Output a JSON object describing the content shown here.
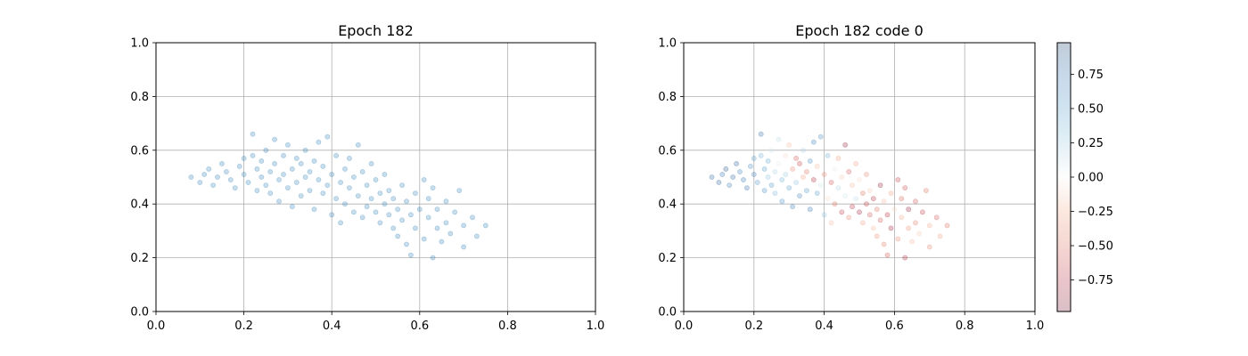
{
  "chart_data": [
    {
      "type": "scatter",
      "title": "Epoch 182",
      "xlabel": "",
      "ylabel": "",
      "xlim": [
        0.0,
        1.0
      ],
      "ylim": [
        0.0,
        1.0
      ],
      "xticks": [
        "0.0",
        "0.2",
        "0.4",
        "0.6",
        "0.8",
        "1.0"
      ],
      "yticks": [
        "0.0",
        "0.2",
        "0.4",
        "0.6",
        "0.8",
        "1.0"
      ],
      "grid": true,
      "marker_color": "#1f77b4",
      "marker_alpha": 0.25,
      "points_approx": [
        [
          0.08,
          0.5
        ],
        [
          0.1,
          0.48
        ],
        [
          0.11,
          0.51
        ],
        [
          0.12,
          0.53
        ],
        [
          0.13,
          0.47
        ],
        [
          0.14,
          0.5
        ],
        [
          0.15,
          0.55
        ],
        [
          0.16,
          0.52
        ],
        [
          0.17,
          0.49
        ],
        [
          0.18,
          0.46
        ],
        [
          0.19,
          0.54
        ],
        [
          0.2,
          0.57
        ],
        [
          0.2,
          0.51
        ],
        [
          0.21,
          0.48
        ],
        [
          0.22,
          0.66
        ],
        [
          0.22,
          0.58
        ],
        [
          0.23,
          0.53
        ],
        [
          0.23,
          0.45
        ],
        [
          0.24,
          0.5
        ],
        [
          0.24,
          0.56
        ],
        [
          0.25,
          0.6
        ],
        [
          0.25,
          0.47
        ],
        [
          0.26,
          0.52
        ],
        [
          0.26,
          0.44
        ],
        [
          0.27,
          0.64
        ],
        [
          0.27,
          0.55
        ],
        [
          0.28,
          0.49
        ],
        [
          0.28,
          0.41
        ],
        [
          0.29,
          0.58
        ],
        [
          0.29,
          0.51
        ],
        [
          0.3,
          0.46
        ],
        [
          0.3,
          0.62
        ],
        [
          0.31,
          0.53
        ],
        [
          0.31,
          0.39
        ],
        [
          0.32,
          0.57
        ],
        [
          0.32,
          0.48
        ],
        [
          0.33,
          0.43
        ],
        [
          0.33,
          0.55
        ],
        [
          0.34,
          0.5
        ],
        [
          0.34,
          0.6
        ],
        [
          0.35,
          0.45
        ],
        [
          0.35,
          0.52
        ],
        [
          0.36,
          0.38
        ],
        [
          0.36,
          0.56
        ],
        [
          0.37,
          0.49
        ],
        [
          0.37,
          0.63
        ],
        [
          0.38,
          0.44
        ],
        [
          0.38,
          0.54
        ],
        [
          0.39,
          0.47
        ],
        [
          0.39,
          0.65
        ],
        [
          0.4,
          0.51
        ],
        [
          0.4,
          0.36
        ],
        [
          0.41,
          0.42
        ],
        [
          0.41,
          0.58
        ],
        [
          0.42,
          0.48
        ],
        [
          0.42,
          0.33
        ],
        [
          0.43,
          0.53
        ],
        [
          0.43,
          0.4
        ],
        [
          0.44,
          0.46
        ],
        [
          0.44,
          0.57
        ],
        [
          0.45,
          0.37
        ],
        [
          0.45,
          0.5
        ],
        [
          0.46,
          0.62
        ],
        [
          0.46,
          0.43
        ],
        [
          0.47,
          0.35
        ],
        [
          0.47,
          0.52
        ],
        [
          0.48,
          0.47
        ],
        [
          0.48,
          0.39
        ],
        [
          0.49,
          0.55
        ],
        [
          0.49,
          0.42
        ],
        [
          0.5,
          0.37
        ],
        [
          0.5,
          0.49
        ],
        [
          0.51,
          0.44
        ],
        [
          0.51,
          0.33
        ],
        [
          0.52,
          0.4
        ],
        [
          0.52,
          0.51
        ],
        [
          0.53,
          0.36
        ],
        [
          0.53,
          0.45
        ],
        [
          0.54,
          0.31
        ],
        [
          0.54,
          0.42
        ],
        [
          0.55,
          0.38
        ],
        [
          0.55,
          0.28
        ],
        [
          0.56,
          0.47
        ],
        [
          0.56,
          0.34
        ],
        [
          0.57,
          0.41
        ],
        [
          0.57,
          0.25
        ],
        [
          0.58,
          0.36
        ],
        [
          0.58,
          0.21
        ],
        [
          0.59,
          0.44
        ],
        [
          0.59,
          0.31
        ],
        [
          0.6,
          0.38
        ],
        [
          0.61,
          0.49
        ],
        [
          0.61,
          0.27
        ],
        [
          0.62,
          0.42
        ],
        [
          0.62,
          0.35
        ],
        [
          0.63,
          0.2
        ],
        [
          0.63,
          0.46
        ],
        [
          0.64,
          0.31
        ],
        [
          0.64,
          0.38
        ],
        [
          0.65,
          0.26
        ],
        [
          0.66,
          0.41
        ],
        [
          0.66,
          0.33
        ],
        [
          0.67,
          0.29
        ],
        [
          0.68,
          0.37
        ],
        [
          0.69,
          0.45
        ],
        [
          0.7,
          0.32
        ],
        [
          0.7,
          0.24
        ],
        [
          0.72,
          0.35
        ],
        [
          0.73,
          0.28
        ],
        [
          0.75,
          0.32
        ]
      ]
    },
    {
      "type": "scatter",
      "title": "Epoch 182 code 0",
      "xlabel": "",
      "ylabel": "",
      "xlim": [
        0.0,
        1.0
      ],
      "ylim": [
        0.0,
        1.0
      ],
      "xticks": [
        "0.0",
        "0.2",
        "0.4",
        "0.6",
        "0.8",
        "1.0"
      ],
      "yticks": [
        "0.0",
        "0.2",
        "0.4",
        "0.6",
        "0.8",
        "1.0"
      ],
      "grid": true,
      "colormap": "RdBu",
      "marker_alpha": 0.25,
      "colorbar": {
        "range": [
          -0.98,
          0.98
        ],
        "ticks": [
          "0.75",
          "0.50",
          "0.25",
          "0.00",
          "−0.25",
          "−0.50",
          "−0.75"
        ],
        "tick_values": [
          0.75,
          0.5,
          0.25,
          0.0,
          -0.25,
          -0.5,
          -0.75
        ]
      },
      "points_approx": [
        [
          0.08,
          0.5,
          0.8
        ],
        [
          0.1,
          0.48,
          0.85
        ],
        [
          0.11,
          0.51,
          0.75
        ],
        [
          0.12,
          0.53,
          0.9
        ],
        [
          0.13,
          0.47,
          0.7
        ],
        [
          0.14,
          0.5,
          0.8
        ],
        [
          0.15,
          0.55,
          0.85
        ],
        [
          0.16,
          0.52,
          0.65
        ],
        [
          0.17,
          0.49,
          0.75
        ],
        [
          0.18,
          0.46,
          0.8
        ],
        [
          0.19,
          0.54,
          0.6
        ],
        [
          0.2,
          0.57,
          0.5
        ],
        [
          0.2,
          0.51,
          0.7
        ],
        [
          0.21,
          0.48,
          0.55
        ],
        [
          0.22,
          0.66,
          0.8
        ],
        [
          0.22,
          0.58,
          0.4
        ],
        [
          0.23,
          0.53,
          0.5
        ],
        [
          0.23,
          0.45,
          0.6
        ],
        [
          0.24,
          0.5,
          0.3
        ],
        [
          0.24,
          0.56,
          0.45
        ],
        [
          0.25,
          0.6,
          0.1
        ],
        [
          0.25,
          0.47,
          0.55
        ],
        [
          0.26,
          0.52,
          0.2
        ],
        [
          0.26,
          0.44,
          0.35
        ],
        [
          0.27,
          0.64,
          0.15
        ],
        [
          0.27,
          0.55,
          0.05
        ],
        [
          0.28,
          0.49,
          0.4
        ],
        [
          0.28,
          0.41,
          0.6
        ],
        [
          0.29,
          0.58,
          -0.1
        ],
        [
          0.29,
          0.51,
          0.25
        ],
        [
          0.3,
          0.46,
          0.5
        ],
        [
          0.3,
          0.62,
          -0.2
        ],
        [
          0.31,
          0.53,
          -0.4
        ],
        [
          0.31,
          0.39,
          0.7
        ],
        [
          0.32,
          0.57,
          -0.6
        ],
        [
          0.32,
          0.48,
          0.3
        ],
        [
          0.33,
          0.43,
          0.65
        ],
        [
          0.33,
          0.55,
          -0.7
        ],
        [
          0.34,
          0.5,
          -0.3
        ],
        [
          0.34,
          0.6,
          0.2
        ],
        [
          0.35,
          0.45,
          0.55
        ],
        [
          0.35,
          0.52,
          -0.5
        ],
        [
          0.36,
          0.38,
          0.75
        ],
        [
          0.36,
          0.56,
          0.6
        ],
        [
          0.37,
          0.49,
          -0.8
        ],
        [
          0.37,
          0.63,
          0.7
        ],
        [
          0.38,
          0.44,
          0.5
        ],
        [
          0.38,
          0.54,
          -0.2
        ],
        [
          0.39,
          0.47,
          0.1
        ],
        [
          0.39,
          0.65,
          0.6
        ],
        [
          0.4,
          0.51,
          -0.4
        ],
        [
          0.4,
          0.36,
          0.3
        ],
        [
          0.41,
          0.42,
          -0.1
        ],
        [
          0.41,
          0.58,
          0.4
        ],
        [
          0.42,
          0.48,
          -0.6
        ],
        [
          0.42,
          0.33,
          -0.2
        ],
        [
          0.43,
          0.53,
          0.05
        ],
        [
          0.43,
          0.4,
          -0.5
        ],
        [
          0.44,
          0.46,
          0.2
        ],
        [
          0.44,
          0.57,
          -0.3
        ],
        [
          0.45,
          0.37,
          -0.7
        ],
        [
          0.45,
          0.5,
          -0.15
        ],
        [
          0.46,
          0.62,
          -0.9
        ],
        [
          0.46,
          0.43,
          0.1
        ],
        [
          0.47,
          0.35,
          -0.4
        ],
        [
          0.47,
          0.52,
          -0.6
        ],
        [
          0.48,
          0.47,
          -0.2
        ],
        [
          0.48,
          0.39,
          -0.75
        ],
        [
          0.49,
          0.55,
          -0.3
        ],
        [
          0.49,
          0.42,
          0.15
        ],
        [
          0.5,
          0.37,
          -0.85
        ],
        [
          0.5,
          0.49,
          -0.1
        ],
        [
          0.51,
          0.44,
          -0.5
        ],
        [
          0.51,
          0.33,
          -0.3
        ],
        [
          0.52,
          0.4,
          -0.7
        ],
        [
          0.52,
          0.51,
          -0.4
        ],
        [
          0.53,
          0.36,
          -0.6
        ],
        [
          0.53,
          0.45,
          -0.15
        ],
        [
          0.54,
          0.31,
          -0.2
        ],
        [
          0.54,
          0.42,
          -0.8
        ],
        [
          0.55,
          0.38,
          -0.5
        ],
        [
          0.55,
          0.28,
          -0.35
        ],
        [
          0.56,
          0.47,
          -0.9
        ],
        [
          0.56,
          0.34,
          -0.6
        ],
        [
          0.57,
          0.41,
          -0.2
        ],
        [
          0.57,
          0.25,
          -0.45
        ],
        [
          0.58,
          0.36,
          -0.75
        ],
        [
          0.58,
          0.21,
          -0.6
        ],
        [
          0.59,
          0.44,
          -0.3
        ],
        [
          0.59,
          0.31,
          -0.85
        ],
        [
          0.6,
          0.38,
          -0.1
        ],
        [
          0.61,
          0.49,
          -0.7
        ],
        [
          0.61,
          0.27,
          -0.4
        ],
        [
          0.62,
          0.42,
          -0.55
        ],
        [
          0.62,
          0.35,
          -0.25
        ],
        [
          0.63,
          0.2,
          -0.8
        ],
        [
          0.63,
          0.46,
          -0.65
        ],
        [
          0.64,
          0.31,
          -0.35
        ],
        [
          0.64,
          0.38,
          -0.9
        ],
        [
          0.65,
          0.26,
          -0.2
        ],
        [
          0.66,
          0.41,
          -0.6
        ],
        [
          0.66,
          0.33,
          -0.45
        ],
        [
          0.67,
          0.29,
          -0.15
        ],
        [
          0.68,
          0.37,
          -0.7
        ],
        [
          0.69,
          0.45,
          -0.5
        ],
        [
          0.7,
          0.32,
          -0.25
        ],
        [
          0.7,
          0.24,
          -0.4
        ],
        [
          0.72,
          0.35,
          -0.6
        ],
        [
          0.73,
          0.28,
          -0.3
        ],
        [
          0.75,
          0.32,
          -0.5
        ]
      ]
    }
  ]
}
